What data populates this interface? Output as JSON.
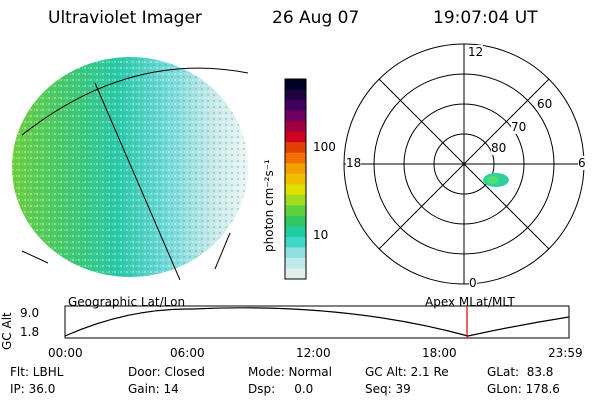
{
  "header": {
    "instrument": "Ultraviolet Imager",
    "date": "26 Aug 07",
    "time": "19:07:04 UT"
  },
  "colorbar": {
    "label": "photon cm⁻²s⁻¹",
    "ticks": [
      "100",
      "10"
    ],
    "colors": [
      "#e0eeee",
      "#c0eaea",
      "#90e0e0",
      "#40d8c8",
      "#20cca0",
      "#30c860",
      "#60d040",
      "#a0dc20",
      "#e0e000",
      "#f0c000",
      "#f0a000",
      "#f07000",
      "#e04000",
      "#d00020",
      "#a00040",
      "#700060",
      "#400060",
      "#200040",
      "#000020"
    ]
  },
  "left_panel": {
    "label": "Geographic Lat/Lon"
  },
  "right_panel": {
    "label": "Apex MLat/MLT",
    "mlt_labels": {
      "top": "12",
      "right": "6",
      "bottom": "0",
      "left": "18"
    },
    "lat_labels": [
      "60",
      "70",
      "80"
    ]
  },
  "gc_alt_plot": {
    "ylabel": "GC Alt",
    "yticks": [
      "9.0",
      "1.8"
    ],
    "xticks": [
      "00:00",
      "06:00",
      "12:00",
      "18:00",
      "23:59"
    ],
    "marker_color": "#e00000"
  },
  "info_rows": [
    [
      "Flt: LBHL",
      "Door: Closed",
      "Mode: Normal",
      "GC Alt: 2.1 Re",
      "GLat:  83.8"
    ],
    [
      "IP: 36.0",
      "Gain: 14",
      "Dsp:     0.0",
      "Seq: 39",
      "GLon: 178.6"
    ]
  ]
}
